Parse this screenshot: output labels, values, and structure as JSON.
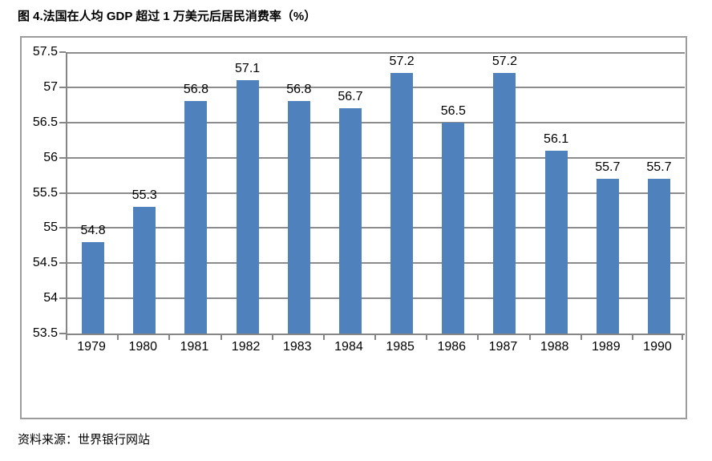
{
  "page": {
    "title": "图 4.法国在人均 GDP 超过 1 万美元后居民消费率（%）",
    "source": "资料来源：世界银行网站"
  },
  "chart_data": {
    "type": "bar",
    "title": "图 4.法国在人均 GDP 超过 1 万美元后居民消费率（%）",
    "categories": [
      "1979",
      "1980",
      "1981",
      "1982",
      "1983",
      "1984",
      "1985",
      "1986",
      "1987",
      "1988",
      "1989",
      "1990"
    ],
    "values": [
      54.8,
      55.3,
      56.8,
      57.1,
      56.8,
      56.7,
      57.2,
      56.5,
      57.2,
      56.1,
      55.7,
      55.7
    ],
    "value_labels": [
      "54.8",
      "55.3",
      "56.8",
      "57.1",
      "56.8",
      "56.7",
      "57.2",
      "56.5",
      "57.2",
      "56.1",
      "55.7",
      "55.7"
    ],
    "xlabel": "",
    "ylabel": "",
    "ylim": [
      53.5,
      57.5
    ],
    "ytick_step": 0.5,
    "yticks": [
      "57.5",
      "57",
      "56.5",
      "56",
      "55.5",
      "55",
      "54.5",
      "54",
      "53.5"
    ],
    "grid": true,
    "legend": "none",
    "bar_color": "#4f81bd",
    "grid_color": "#8c8c8c",
    "axis_color": "#858585",
    "frame_color": "#9c9c9c",
    "label_color": "#000000",
    "source": "资料来源：世界银行网站"
  }
}
